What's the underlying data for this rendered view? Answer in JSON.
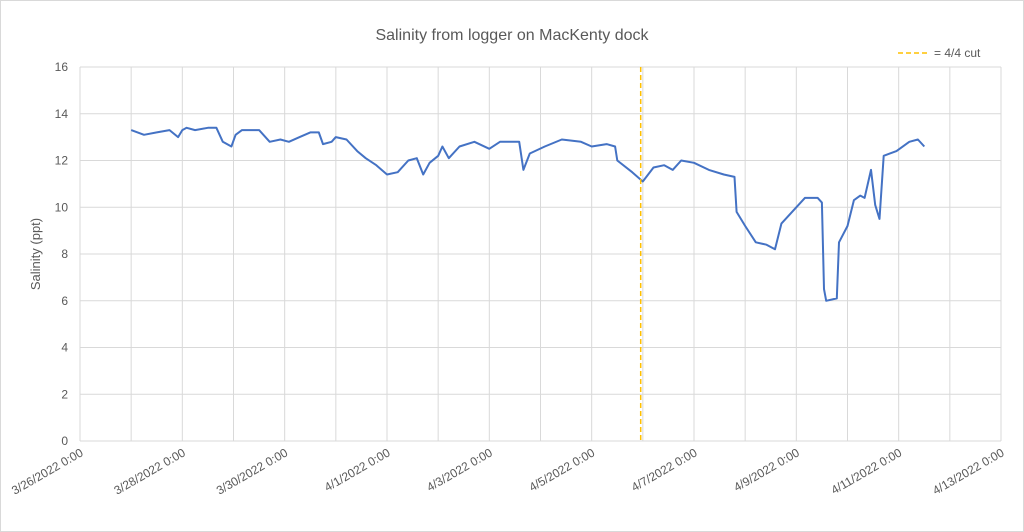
{
  "chart_data": {
    "type": "line",
    "title": "Salinity from logger on MacKenty dock",
    "y_label": "Salinity (ppt)",
    "ylim": [
      0,
      16
    ],
    "yticks": [
      0,
      2,
      4,
      6,
      8,
      10,
      12,
      14,
      16
    ],
    "xlim": [
      "3/26/2022 0:00",
      "4/13/2022 0:00"
    ],
    "xticks": [
      "3/26/2022 0:00",
      "3/28/2022 0:00",
      "3/30/2022 0:00",
      "4/1/2022 0:00",
      "4/3/2022 0:00",
      "4/5/2022 0:00",
      "4/7/2022 0:00",
      "4/9/2022 0:00",
      "4/11/2022 0:00",
      "4/13/2022 0:00"
    ],
    "xminorticks": [
      "3/27/2022 0:00",
      "3/29/2022 0:00",
      "3/31/2022 0:00",
      "4/2/2022 0:00",
      "4/4/2022 0:00",
      "4/6/2022 0:00",
      "4/8/2022 0:00",
      "4/10/2022 0:00",
      "4/12/2022 0:00"
    ],
    "grid": true,
    "x": [
      "3/27/2022 0:00",
      "3/27/2022 6:00",
      "3/27/2022 12:00",
      "3/27/2022 18:00",
      "3/27/2022 22:00",
      "3/28/2022 0:00",
      "3/28/2022 2:00",
      "3/28/2022 6:00",
      "3/28/2022 12:00",
      "3/28/2022 16:00",
      "3/28/2022 19:00",
      "3/28/2022 23:00",
      "3/29/2022 1:00",
      "3/29/2022 4:00",
      "3/29/2022 12:00",
      "3/29/2022 17:00",
      "3/29/2022 22:00",
      "3/30/2022 2:00",
      "3/30/2022 7:00",
      "3/30/2022 12:00",
      "3/30/2022 16:00",
      "3/30/2022 18:00",
      "3/30/2022 22:00",
      "3/31/2022 0:00",
      "3/31/2022 5:00",
      "3/31/2022 10:00",
      "3/31/2022 14:00",
      "3/31/2022 19:00",
      "4/1/2022 0:00",
      "4/1/2022 5:00",
      "4/1/2022 10:00",
      "4/1/2022 14:00",
      "4/1/2022 17:00",
      "4/1/2022 20:00",
      "4/2/2022 0:00",
      "4/2/2022 2:00",
      "4/2/2022 5:00",
      "4/2/2022 10:00",
      "4/2/2022 17:00",
      "4/3/2022 0:00",
      "4/3/2022 5:00",
      "4/3/2022 14:00",
      "4/3/2022 16:00",
      "4/3/2022 19:00",
      "4/4/2022 2:00",
      "4/4/2022 10:00",
      "4/4/2022 19:00",
      "4/5/2022 0:00",
      "4/5/2022 7:00",
      "4/5/2022 11:00",
      "4/5/2022 12:00",
      "4/5/2022 19:00",
      "4/6/2022 0:00",
      "4/6/2022 5:00",
      "4/6/2022 10:00",
      "4/6/2022 14:00",
      "4/6/2022 18:00",
      "4/7/2022 0:00",
      "4/7/2022 7:00",
      "4/7/2022 14:00",
      "4/7/2022 19:00",
      "4/7/2022 20:00",
      "4/8/2022 0:00",
      "4/8/2022 5:00",
      "4/8/2022 10:00",
      "4/8/2022 14:00",
      "4/8/2022 17:00",
      "4/9/2022 0:00",
      "4/9/2022 4:00",
      "4/9/2022 10:00",
      "4/9/2022 12:00",
      "4/9/2022 13:00",
      "4/9/2022 14:00",
      "4/9/2022 19:00",
      "4/9/2022 20:00",
      "4/10/2022 0:00",
      "4/10/2022 3:00",
      "4/10/2022 6:00",
      "4/10/2022 8:00",
      "4/10/2022 11:00",
      "4/10/2022 13:00",
      "4/10/2022 15:00",
      "4/10/2022 17:00",
      "4/10/2022 23:00",
      "4/11/2022 5:00",
      "4/11/2022 9:00",
      "4/11/2022 12:00"
    ],
    "series": [
      {
        "color": "#4472c4",
        "values": [
          13.3,
          13.1,
          13.2,
          13.3,
          13.0,
          13.3,
          13.4,
          13.3,
          13.4,
          13.4,
          12.8,
          12.6,
          13.1,
          13.3,
          13.3,
          12.8,
          12.9,
          12.8,
          13.0,
          13.2,
          13.2,
          12.7,
          12.8,
          13.0,
          12.9,
          12.4,
          12.1,
          11.8,
          11.4,
          11.5,
          12.0,
          12.1,
          11.4,
          11.9,
          12.2,
          12.6,
          12.1,
          12.6,
          12.8,
          12.5,
          12.8,
          12.8,
          11.6,
          12.3,
          12.6,
          12.9,
          12.8,
          12.6,
          12.7,
          12.6,
          12.0,
          11.5,
          11.1,
          11.7,
          11.8,
          11.6,
          12.0,
          11.9,
          11.6,
          11.4,
          11.3,
          9.8,
          9.2,
          8.5,
          8.4,
          8.2,
          9.3,
          10.0,
          10.4,
          10.4,
          10.2,
          6.5,
          6.0,
          6.1,
          8.5,
          9.2,
          10.3,
          10.5,
          10.4,
          11.6,
          10.1,
          9.5,
          12.2,
          12.4,
          12.8,
          12.9,
          12.6
        ]
      }
    ],
    "vline": {
      "name": "= 4/4 cut",
      "x": "4/5/2022 23:00",
      "color": "#ffc000"
    },
    "legend": "top-right"
  }
}
